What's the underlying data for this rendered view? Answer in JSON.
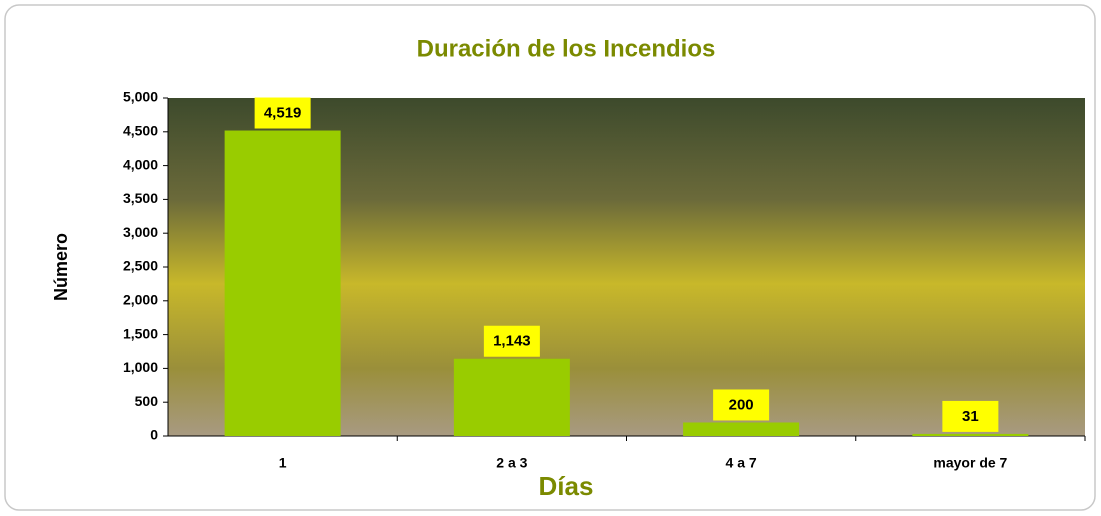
{
  "chart_data": {
    "type": "bar",
    "title": "Duración de los Incendios",
    "x_label": "Días",
    "y_label": "Número",
    "categories": [
      "1",
      "2 a 3",
      "4 a 7",
      "mayor de 7"
    ],
    "values": [
      4519,
      1143,
      200,
      31
    ],
    "value_labels": [
      "4,519",
      "1,143",
      "200",
      "31"
    ],
    "color": "#99cc00",
    "ylim": [
      0,
      5000
    ],
    "yticks": [
      0,
      500,
      {
        "value": 1000,
        "label": "1,000"
      },
      {
        "value": 1500,
        "label": "1,500"
      },
      {
        "value": 2000,
        "label": "2,000"
      },
      {
        "value": 2500,
        "label": "2,500"
      },
      {
        "value": 3000,
        "label": "3,000"
      },
      {
        "value": 3500,
        "label": "3,500"
      },
      {
        "value": 4000,
        "label": "4,000"
      },
      {
        "value": 4500,
        "label": "4,500"
      },
      {
        "value": 5000,
        "label": "5,000"
      }
    ]
  }
}
